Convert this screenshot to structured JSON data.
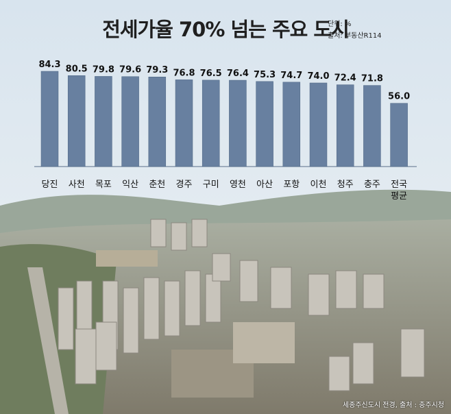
{
  "title": "전세가율 70% 넘는 주요 도시",
  "unit_label": "단위: %",
  "source_label": "출처: 부동산R114",
  "photo_caption": "세종주신도시 전경, 출처 : 충주시청",
  "colors": {
    "bar": "#6880a0",
    "bar_edge": "#4e6683",
    "value": "#111111",
    "tick": "#111111"
  },
  "chart_data": {
    "type": "bar",
    "title": "전세가율 70% 넘는 주요 도시",
    "categories": [
      "당진",
      "사천",
      "목포",
      "익산",
      "춘천",
      "경주",
      "구미",
      "영천",
      "아산",
      "포항",
      "이천",
      "청주",
      "충주",
      "전국\n평균"
    ],
    "values": [
      84.3,
      80.5,
      79.8,
      79.6,
      79.3,
      76.8,
      76.5,
      76.4,
      75.3,
      74.7,
      74.0,
      72.4,
      71.8,
      56.0
    ],
    "value_labels": [
      "84.3",
      "80.5",
      "79.8",
      "79.6",
      "79.3",
      "76.8",
      "76.5",
      "76.4",
      "75.3",
      "74.7",
      "74.0",
      "72.4",
      "71.8",
      "56.0"
    ],
    "ylim": [
      0,
      84.3
    ],
    "grid": false,
    "xlabel": "",
    "ylabel": ""
  }
}
